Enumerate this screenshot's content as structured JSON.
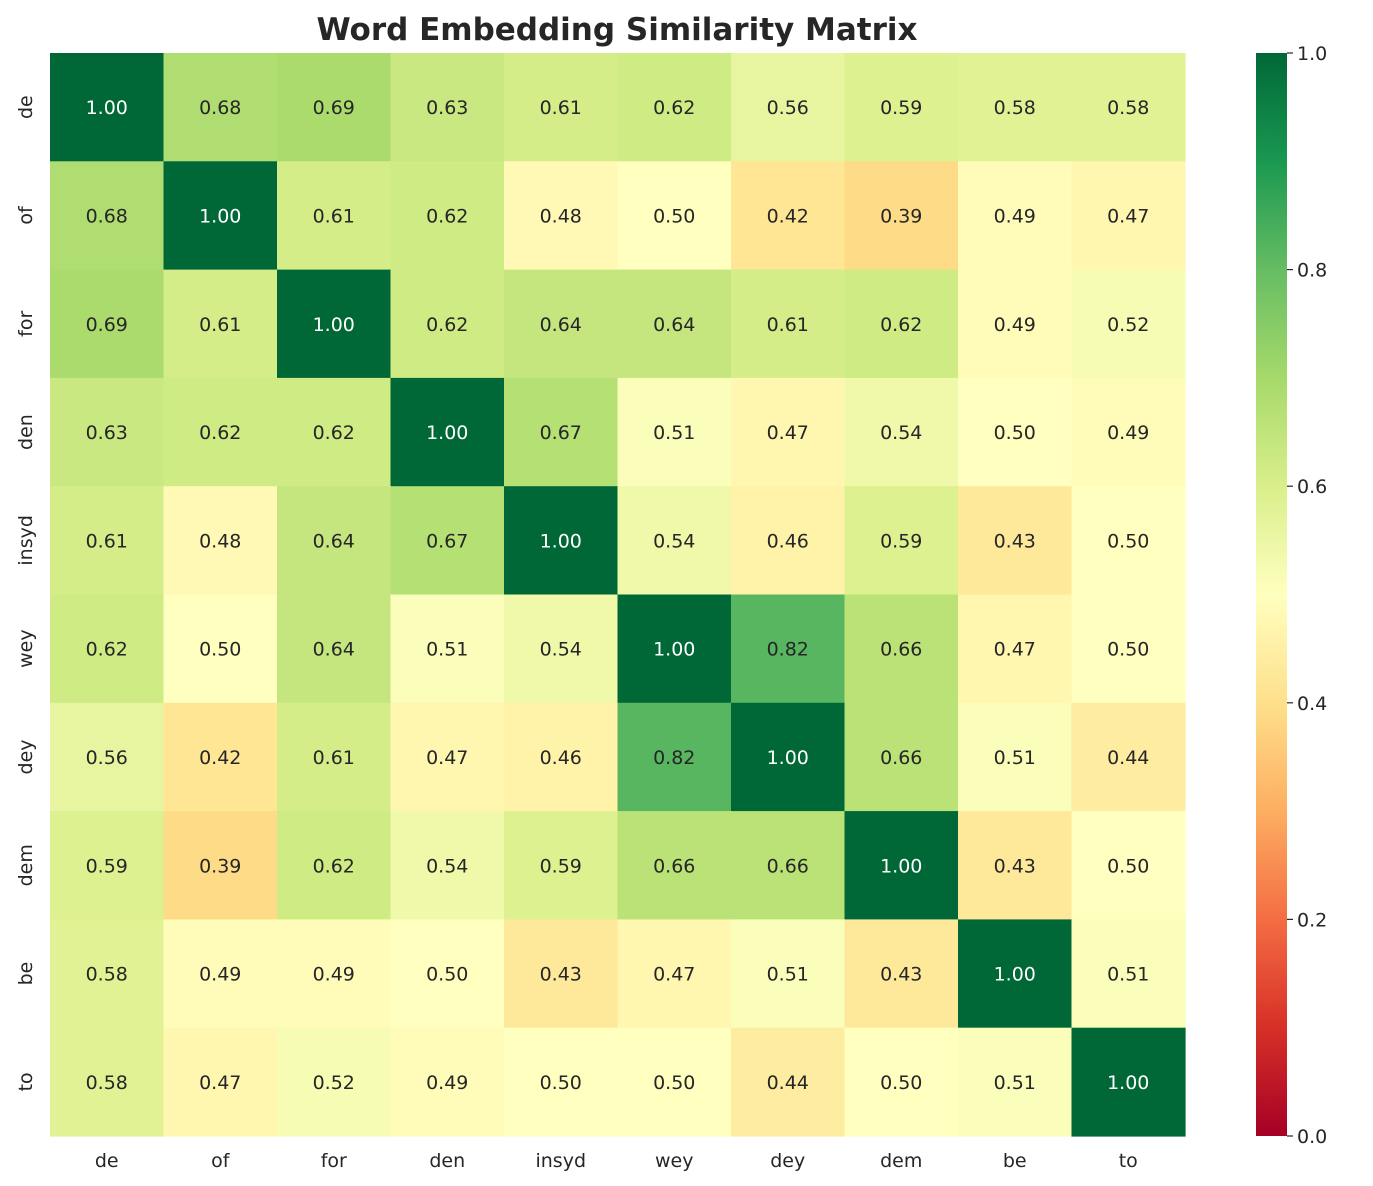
{
  "chart_data": {
    "type": "heatmap",
    "title": "Word Embedding Similarity Matrix",
    "xlabel": "",
    "ylabel": "",
    "x_categories": [
      "de",
      "of",
      "for",
      "den",
      "insyd",
      "wey",
      "dey",
      "dem",
      "be",
      "to"
    ],
    "y_categories": [
      "de",
      "of",
      "for",
      "den",
      "insyd",
      "wey",
      "dey",
      "dem",
      "be",
      "to"
    ],
    "values": [
      [
        1.0,
        0.68,
        0.69,
        0.63,
        0.61,
        0.62,
        0.56,
        0.59,
        0.58,
        0.58
      ],
      [
        0.68,
        1.0,
        0.61,
        0.62,
        0.48,
        0.5,
        0.42,
        0.39,
        0.49,
        0.47
      ],
      [
        0.69,
        0.61,
        1.0,
        0.62,
        0.64,
        0.64,
        0.61,
        0.62,
        0.49,
        0.52
      ],
      [
        0.63,
        0.62,
        0.62,
        1.0,
        0.67,
        0.51,
        0.47,
        0.54,
        0.5,
        0.49
      ],
      [
        0.61,
        0.48,
        0.64,
        0.67,
        1.0,
        0.54,
        0.46,
        0.59,
        0.43,
        0.5
      ],
      [
        0.62,
        0.5,
        0.64,
        0.51,
        0.54,
        1.0,
        0.82,
        0.66,
        0.47,
        0.5
      ],
      [
        0.56,
        0.42,
        0.61,
        0.47,
        0.46,
        0.82,
        1.0,
        0.66,
        0.51,
        0.44
      ],
      [
        0.59,
        0.39,
        0.62,
        0.54,
        0.59,
        0.66,
        0.66,
        1.0,
        0.43,
        0.5
      ],
      [
        0.58,
        0.49,
        0.49,
        0.5,
        0.43,
        0.47,
        0.51,
        0.43,
        1.0,
        0.51
      ],
      [
        0.58,
        0.47,
        0.52,
        0.49,
        0.5,
        0.5,
        0.44,
        0.5,
        0.51,
        1.0
      ]
    ],
    "value_format": "0.00",
    "colormap": "RdYlGn",
    "vmin": 0.0,
    "vmax": 1.0,
    "colorbar_ticks": [
      "0.0",
      "0.2",
      "0.4",
      "0.6",
      "0.8",
      "1.0"
    ],
    "colorbar_position": "right",
    "grid": false,
    "legend": "none"
  }
}
